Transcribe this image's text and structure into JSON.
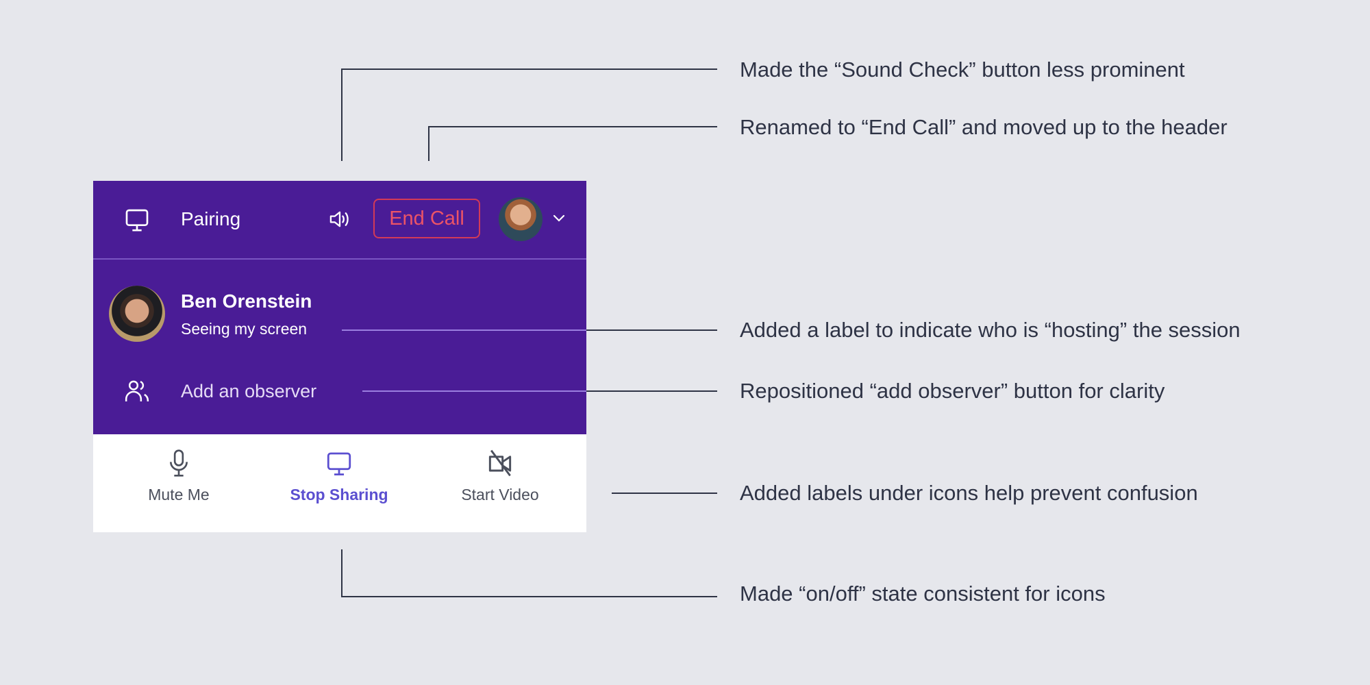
{
  "header": {
    "title": "Pairing",
    "end_call_label": "End Call",
    "icons": [
      "monitor-icon",
      "speaker-icon",
      "avatar",
      "chevron-down-icon"
    ]
  },
  "host": {
    "name": "Ben Orenstein",
    "status": "Seeing my screen"
  },
  "observer": {
    "label": "Add an observer",
    "icon": "users-icon"
  },
  "toolbar": {
    "mute_label": "Mute Me",
    "share_label": "Stop Sharing",
    "video_label": "Start Video"
  },
  "annotations": [
    "Made the “Sound Check” button less prominent",
    "Renamed to “End Call” and moved up to the header",
    "Added a label to indicate who is “hosting” the session",
    "Repositioned “add observer” button for clarity",
    "Added labels under icons help prevent confusion",
    "Made “on/off” state consistent for icons"
  ],
  "colors": {
    "background": "#e6e7ec",
    "panel_purple": "#4a1c96",
    "end_call_red": "#ec5466",
    "active_blue": "#5b4fd0",
    "annotation_text": "#2e3345"
  }
}
